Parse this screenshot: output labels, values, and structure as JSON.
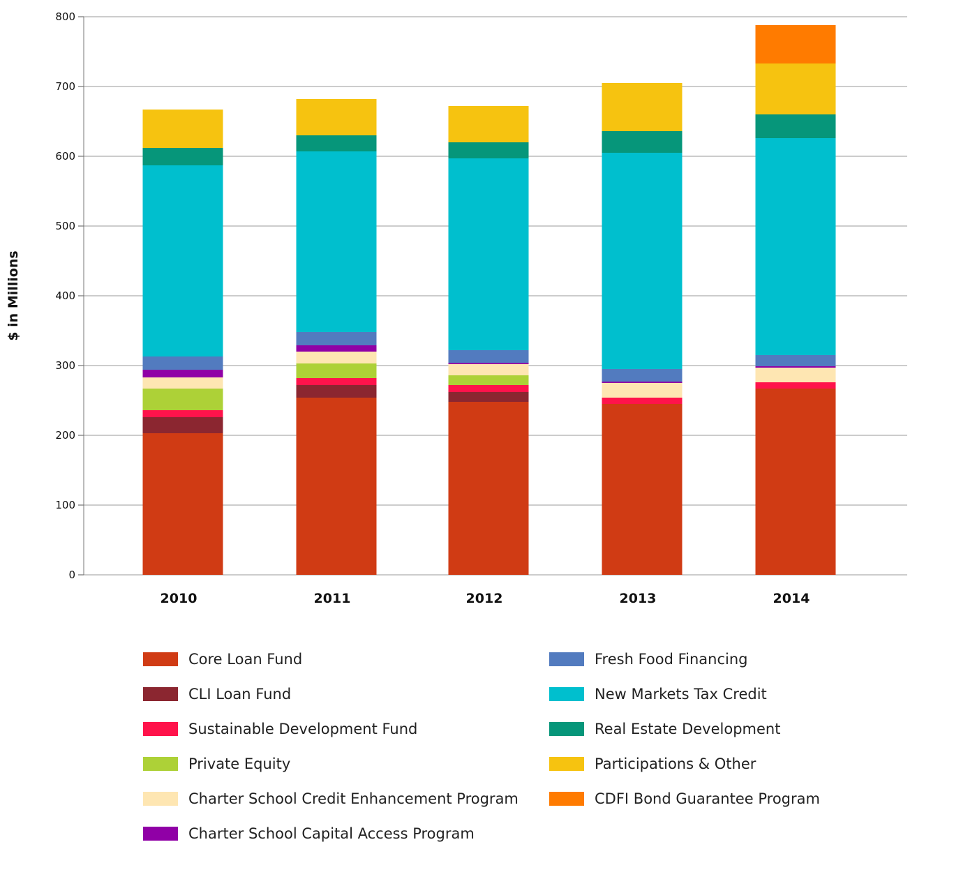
{
  "chart_data": {
    "type": "bar",
    "stacked": true,
    "title": "",
    "xlabel": "",
    "ylabel": "$ in Millions",
    "ylim": [
      0,
      800
    ],
    "yticks": [
      0,
      100,
      200,
      300,
      400,
      500,
      600,
      700,
      800
    ],
    "grid": true,
    "legend_position": "bottom",
    "categories": [
      "2010",
      "2011",
      "2012",
      "2013",
      "2014"
    ],
    "series": [
      {
        "name": "Core Loan Fund",
        "color": "#D03B14",
        "values": [
          203,
          254,
          248,
          245,
          267
        ]
      },
      {
        "name": "CLI Loan Fund",
        "color": "#8B2630",
        "values": [
          23,
          18,
          14,
          0,
          0
        ]
      },
      {
        "name": "Sustainable Development Fund",
        "color": "#FF134B",
        "values": [
          10,
          10,
          10,
          9,
          9
        ]
      },
      {
        "name": "Private Equity",
        "color": "#ADD137",
        "values": [
          31,
          21,
          14,
          0,
          0
        ]
      },
      {
        "name": "Charter School Credit Enhancement Program",
        "color": "#FEE6B2",
        "values": [
          16,
          17,
          16,
          21,
          21
        ]
      },
      {
        "name": "Charter School Capital Access Program",
        "color": "#9000A6",
        "values": [
          11,
          9,
          2,
          2,
          2
        ]
      },
      {
        "name": "Fresh Food Financing",
        "color": "#527BBF",
        "values": [
          19,
          19,
          18,
          18,
          16
        ]
      },
      {
        "name": "New Markets Tax Credit",
        "color": "#00BFCE",
        "values": [
          274,
          259,
          275,
          310,
          311
        ]
      },
      {
        "name": "Real Estate Development",
        "color": "#06967A",
        "values": [
          25,
          23,
          23,
          31,
          34
        ]
      },
      {
        "name": "Participations & Other",
        "color": "#F6C310",
        "values": [
          55,
          52,
          52,
          69,
          73
        ]
      },
      {
        "name": "CDFI Bond Guarantee Program",
        "color": "#FF7B00",
        "values": [
          0,
          0,
          0,
          0,
          55
        ]
      }
    ]
  }
}
